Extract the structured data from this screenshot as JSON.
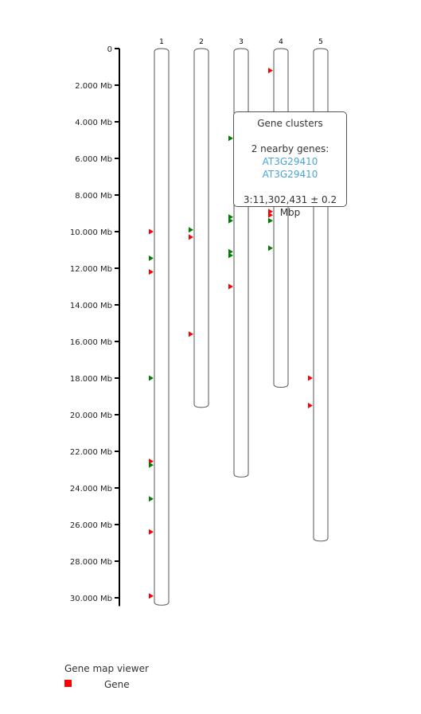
{
  "chart_data": {
    "type": "ideogram",
    "title": "Gene map viewer",
    "y_axis": {
      "unit": "Mb",
      "range": [
        0,
        30.5
      ],
      "ticks": [
        {
          "value": 0,
          "label": "0"
        },
        {
          "value": 2,
          "label": "2.000 Mb"
        },
        {
          "value": 4,
          "label": "4.000 Mb"
        },
        {
          "value": 6,
          "label": "6.000 Mb"
        },
        {
          "value": 8,
          "label": "8.000 Mb"
        },
        {
          "value": 10,
          "label": "10.000 Mb"
        },
        {
          "value": 12,
          "label": "12.000 Mb"
        },
        {
          "value": 14,
          "label": "14.000 Mb"
        },
        {
          "value": 16,
          "label": "16.000 Mb"
        },
        {
          "value": 18,
          "label": "18.000 Mb"
        },
        {
          "value": 20,
          "label": "20.000 Mb"
        },
        {
          "value": 22,
          "label": "22.000 Mb"
        },
        {
          "value": 24,
          "label": "24.000 Mb"
        },
        {
          "value": 26,
          "label": "26.000 Mb"
        },
        {
          "value": 28,
          "label": "28.000 Mb"
        },
        {
          "value": 30,
          "label": "30.000 Mb"
        }
      ]
    },
    "chromosomes": [
      {
        "name": "1",
        "length": 30.4
      },
      {
        "name": "2",
        "length": 19.6
      },
      {
        "name": "3",
        "length": 23.4
      },
      {
        "name": "4",
        "length": 18.5
      },
      {
        "name": "5",
        "length": 26.9
      }
    ],
    "markers": [
      {
        "chr": "1",
        "pos": 10.0,
        "color": "#ff0000"
      },
      {
        "chr": "1",
        "pos": 11.45,
        "color": "#008000"
      },
      {
        "chr": "1",
        "pos": 12.2,
        "color": "#ff0000"
      },
      {
        "chr": "1",
        "pos": 18.0,
        "color": "#008000"
      },
      {
        "chr": "1",
        "pos": 22.55,
        "color": "#ff0000"
      },
      {
        "chr": "1",
        "pos": 22.75,
        "color": "#008000"
      },
      {
        "chr": "1",
        "pos": 24.6,
        "color": "#008000"
      },
      {
        "chr": "1",
        "pos": 26.4,
        "color": "#ff0000"
      },
      {
        "chr": "1",
        "pos": 29.9,
        "color": "#ff0000"
      },
      {
        "chr": "2",
        "pos": 9.9,
        "color": "#008000"
      },
      {
        "chr": "2",
        "pos": 10.3,
        "color": "#ff0000"
      },
      {
        "chr": "2",
        "pos": 15.6,
        "color": "#ff0000"
      },
      {
        "chr": "3",
        "pos": 4.9,
        "color": "#008000"
      },
      {
        "chr": "3",
        "pos": 9.2,
        "color": "#008000"
      },
      {
        "chr": "3",
        "pos": 9.4,
        "color": "#008000"
      },
      {
        "chr": "3",
        "pos": 11.1,
        "color": "#008000"
      },
      {
        "chr": "3",
        "pos": 11.3,
        "color": "#008000"
      },
      {
        "chr": "3",
        "pos": 13.0,
        "color": "#ff0000"
      },
      {
        "chr": "4",
        "pos": 1.2,
        "color": "#ff0000"
      },
      {
        "chr": "4",
        "pos": 8.9,
        "color": "#ff0000"
      },
      {
        "chr": "4",
        "pos": 9.1,
        "color": "#ff0000"
      },
      {
        "chr": "4",
        "pos": 9.4,
        "color": "#008000"
      },
      {
        "chr": "4",
        "pos": 10.9,
        "color": "#008000"
      },
      {
        "chr": "5",
        "pos": 18.0,
        "color": "#ff0000"
      },
      {
        "chr": "5",
        "pos": 19.5,
        "color": "#ff0000"
      }
    ],
    "tooltip": {
      "title": "Gene clusters",
      "subtitle": "2 nearby genes:",
      "genes": [
        "AT3G29410",
        "AT3G29410"
      ],
      "position": "3:11,302,431 ± 0.2 Mbp"
    },
    "legend": {
      "entries": [
        {
          "label": "Gene",
          "color": "#ff0000"
        }
      ]
    }
  }
}
